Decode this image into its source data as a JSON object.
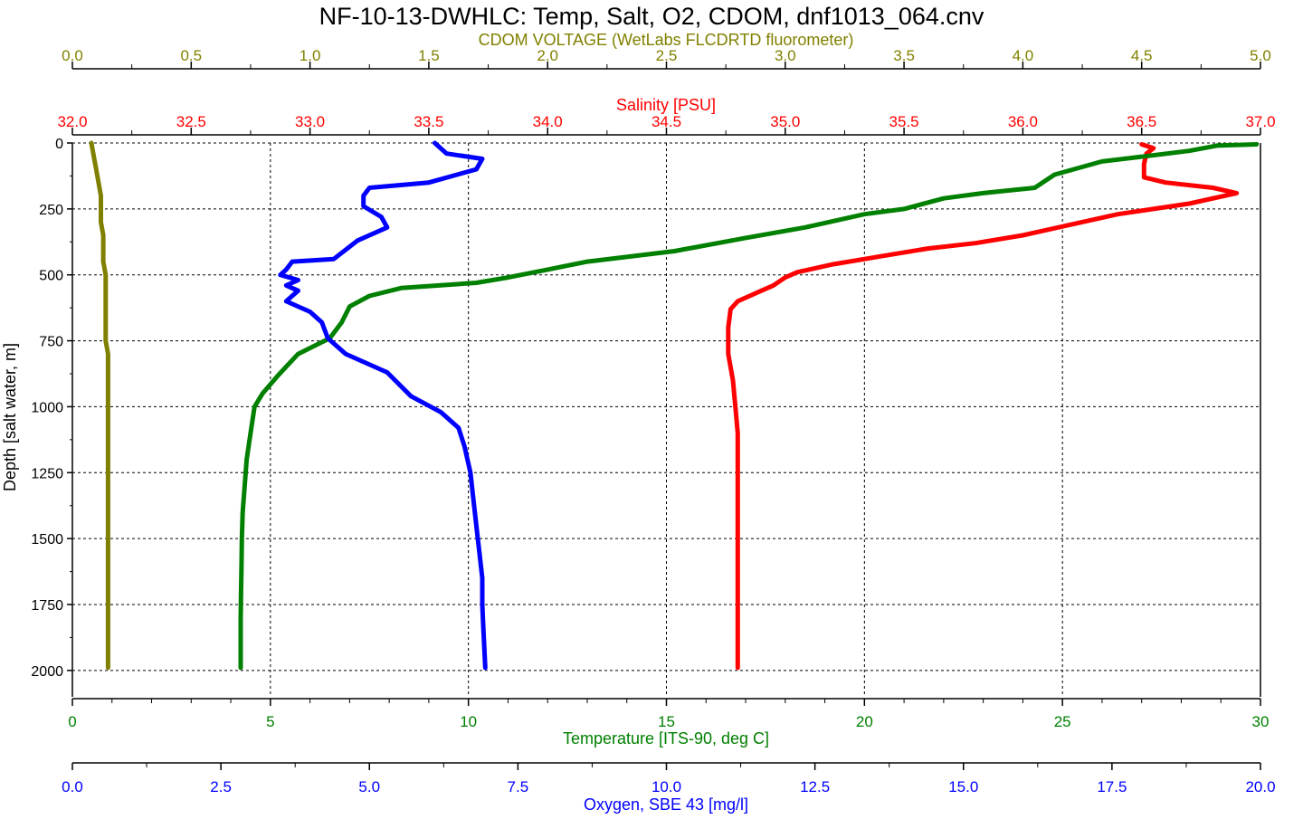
{
  "chart_data": {
    "type": "line",
    "title": "NF-10-13-DWHLC: Temp, Salt, O2, CDOM, dnf1013_064.cnv",
    "ylabel": "Depth [salt water, m]",
    "ylim": [
      2100,
      0
    ],
    "yticks": [
      "0",
      "250",
      "500",
      "750",
      "1000",
      "1250",
      "1500",
      "1750",
      "2000"
    ],
    "grid": true,
    "axes": {
      "cdom": {
        "label": "CDOM VOLTAGE (WetLabs FLCDRTD fluorometer)",
        "color": "#808000",
        "range": [
          0,
          5
        ],
        "ticks": [
          "0.0",
          "0.5",
          "1.0",
          "1.5",
          "2.0",
          "2.5",
          "3.0",
          "3.5",
          "4.0",
          "4.5",
          "5.0"
        ]
      },
      "salinity": {
        "label": "Salinity [PSU]",
        "color": "#ff0000",
        "range": [
          32,
          37
        ],
        "ticks": [
          "32.0",
          "32.5",
          "33.0",
          "33.5",
          "34.0",
          "34.5",
          "35.0",
          "35.5",
          "36.0",
          "36.5",
          "37.0"
        ]
      },
      "temperature": {
        "label": "Temperature [ITS-90, deg C]",
        "color": "#008000",
        "range": [
          0,
          30
        ],
        "ticks": [
          "0",
          "5",
          "10",
          "15",
          "20",
          "25",
          "30"
        ]
      },
      "oxygen": {
        "label": "Oxygen, SBE 43 [mg/l]",
        "color": "#0000ff",
        "range": [
          0,
          20
        ],
        "ticks": [
          "0.0",
          "2.5",
          "5.0",
          "7.5",
          "10.0",
          "12.5",
          "15.0",
          "17.5",
          "20.0"
        ]
      }
    },
    "series": [
      {
        "axis": "cdom",
        "color": "#808000",
        "points": [
          [
            0.08,
            0
          ],
          [
            0.09,
            50
          ],
          [
            0.1,
            100
          ],
          [
            0.11,
            150
          ],
          [
            0.12,
            200
          ],
          [
            0.12,
            250
          ],
          [
            0.12,
            300
          ],
          [
            0.13,
            350
          ],
          [
            0.13,
            400
          ],
          [
            0.13,
            450
          ],
          [
            0.14,
            500
          ],
          [
            0.14,
            550
          ],
          [
            0.14,
            600
          ],
          [
            0.14,
            650
          ],
          [
            0.14,
            700
          ],
          [
            0.14,
            750
          ],
          [
            0.15,
            800
          ],
          [
            0.15,
            900
          ],
          [
            0.15,
            1000
          ],
          [
            0.15,
            1100
          ],
          [
            0.15,
            1200
          ],
          [
            0.15,
            1300
          ],
          [
            0.15,
            1400
          ],
          [
            0.15,
            1500
          ],
          [
            0.15,
            1600
          ],
          [
            0.15,
            1700
          ],
          [
            0.15,
            1800
          ],
          [
            0.15,
            1900
          ],
          [
            0.15,
            1990
          ]
        ]
      },
      {
        "axis": "salinity",
        "color": "#ff0000",
        "points": [
          [
            36.5,
            5
          ],
          [
            36.55,
            20
          ],
          [
            36.52,
            40
          ],
          [
            36.51,
            80
          ],
          [
            36.51,
            130
          ],
          [
            36.6,
            150
          ],
          [
            36.8,
            170
          ],
          [
            36.9,
            190
          ],
          [
            36.7,
            230
          ],
          [
            36.4,
            270
          ],
          [
            36.2,
            310
          ],
          [
            36.0,
            350
          ],
          [
            35.8,
            380
          ],
          [
            35.6,
            400
          ],
          [
            35.4,
            430
          ],
          [
            35.2,
            460
          ],
          [
            35.05,
            490
          ],
          [
            35.0,
            510
          ],
          [
            34.95,
            540
          ],
          [
            34.9,
            560
          ],
          [
            34.8,
            600
          ],
          [
            34.77,
            630
          ],
          [
            34.76,
            700
          ],
          [
            34.76,
            800
          ],
          [
            34.78,
            900
          ],
          [
            34.79,
            1000
          ],
          [
            34.8,
            1100
          ],
          [
            34.8,
            1200
          ],
          [
            34.8,
            1300
          ],
          [
            34.8,
            1400
          ],
          [
            34.8,
            1500
          ],
          [
            34.8,
            1600
          ],
          [
            34.8,
            1700
          ],
          [
            34.8,
            1800
          ],
          [
            34.8,
            1900
          ],
          [
            34.8,
            1990
          ]
        ]
      },
      {
        "axis": "temperature",
        "color": "#008000",
        "points": [
          [
            29.9,
            5
          ],
          [
            28.9,
            10
          ],
          [
            28.2,
            30
          ],
          [
            27.1,
            50
          ],
          [
            26.0,
            70
          ],
          [
            24.8,
            120
          ],
          [
            24.3,
            170
          ],
          [
            23.0,
            190
          ],
          [
            22.0,
            210
          ],
          [
            21.0,
            250
          ],
          [
            20.0,
            270
          ],
          [
            18.5,
            320
          ],
          [
            17.0,
            360
          ],
          [
            15.2,
            410
          ],
          [
            13.0,
            450
          ],
          [
            12.0,
            480
          ],
          [
            11.0,
            510
          ],
          [
            10.2,
            530
          ],
          [
            8.3,
            550
          ],
          [
            7.5,
            580
          ],
          [
            7.0,
            620
          ],
          [
            6.8,
            680
          ],
          [
            6.5,
            740
          ],
          [
            5.7,
            800
          ],
          [
            5.2,
            880
          ],
          [
            4.8,
            950
          ],
          [
            4.6,
            1000
          ],
          [
            4.5,
            1100
          ],
          [
            4.4,
            1200
          ],
          [
            4.35,
            1300
          ],
          [
            4.3,
            1400
          ],
          [
            4.28,
            1500
          ],
          [
            4.27,
            1600
          ],
          [
            4.26,
            1700
          ],
          [
            4.25,
            1800
          ],
          [
            4.25,
            1900
          ],
          [
            4.25,
            1990
          ]
        ]
      },
      {
        "axis": "oxygen",
        "color": "#0000ff",
        "points": [
          [
            6.1,
            0
          ],
          [
            6.3,
            40
          ],
          [
            6.9,
            60
          ],
          [
            6.8,
            100
          ],
          [
            6.0,
            150
          ],
          [
            5.0,
            170
          ],
          [
            4.9,
            200
          ],
          [
            4.9,
            240
          ],
          [
            5.2,
            280
          ],
          [
            5.3,
            320
          ],
          [
            4.8,
            370
          ],
          [
            4.4,
            440
          ],
          [
            3.7,
            450
          ],
          [
            3.6,
            480
          ],
          [
            3.5,
            500
          ],
          [
            3.8,
            520
          ],
          [
            3.6,
            540
          ],
          [
            3.8,
            560
          ],
          [
            3.7,
            580
          ],
          [
            3.6,
            600
          ],
          [
            4.0,
            640
          ],
          [
            4.2,
            680
          ],
          [
            4.3,
            740
          ],
          [
            4.6,
            800
          ],
          [
            5.3,
            870
          ],
          [
            5.7,
            960
          ],
          [
            6.2,
            1020
          ],
          [
            6.5,
            1080
          ],
          [
            6.6,
            1150
          ],
          [
            6.7,
            1250
          ],
          [
            6.75,
            1350
          ],
          [
            6.8,
            1450
          ],
          [
            6.85,
            1550
          ],
          [
            6.9,
            1650
          ],
          [
            6.9,
            1750
          ],
          [
            6.92,
            1850
          ],
          [
            6.95,
            1990
          ]
        ]
      }
    ]
  }
}
